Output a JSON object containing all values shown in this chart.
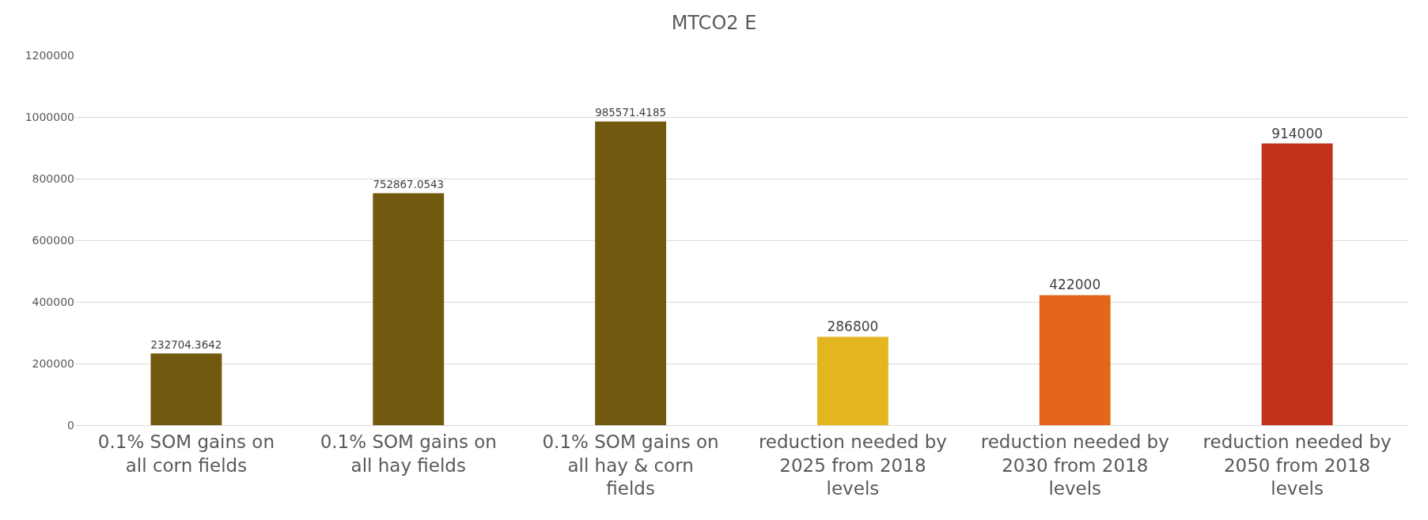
{
  "chart_data": {
    "type": "bar",
    "title": "MTCO2 E",
    "categories": [
      "0.1% SOM gains on all corn fields",
      "0.1% SOM gains on all hay fields",
      "0.1% SOM gains on all hay & corn fields",
      "reduction needed by 2025 from 2018 levels",
      "reduction needed by 2030 from 2018 levels",
      "reduction needed by 2050 from 2018 levels"
    ],
    "values": [
      232704.3642,
      752867.0543,
      985571.4185,
      286800,
      422000,
      914000
    ],
    "colors": [
      "#715a0f",
      "#715a0f",
      "#715a0f",
      "#e3b620",
      "#e4661a",
      "#c3301b"
    ],
    "ylim": [
      0,
      1200000
    ],
    "yticks": [
      0,
      200000,
      400000,
      600000,
      800000,
      1000000,
      1200000
    ],
    "grid": "y",
    "data_labels": true
  }
}
